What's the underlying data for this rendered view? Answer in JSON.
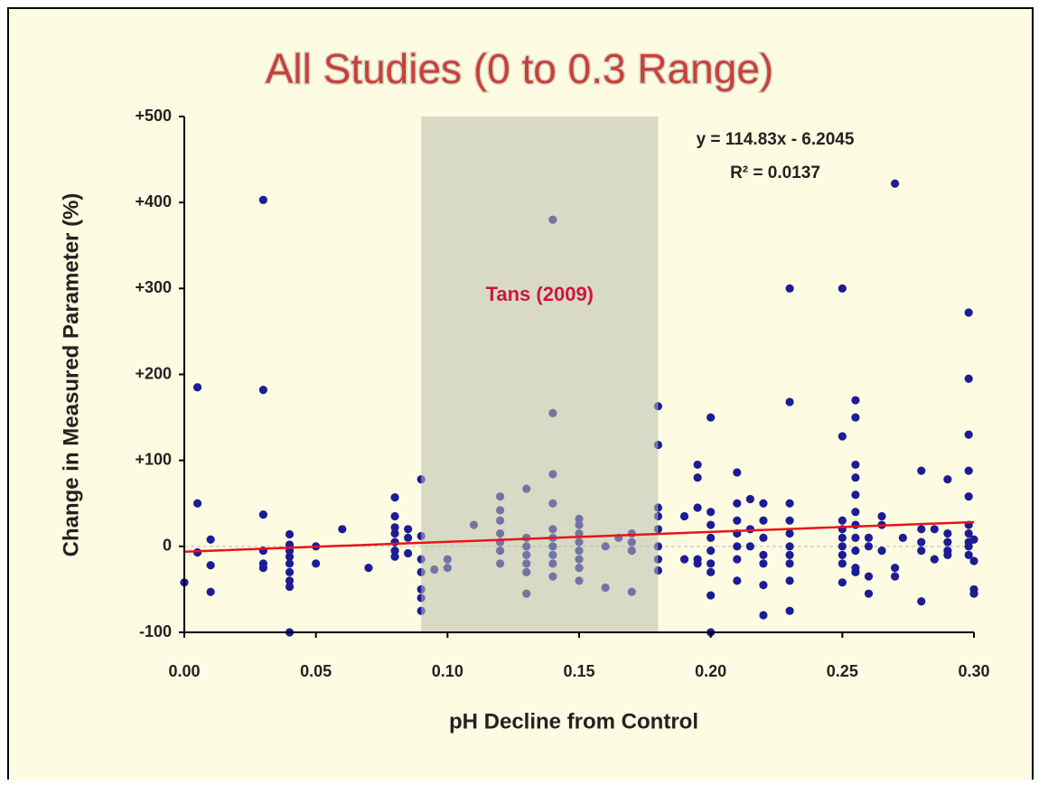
{
  "chart_data": {
    "type": "scatter",
    "title": "All Studies (0 to 0.3 Range)",
    "x_label": "pH Decline from Control",
    "y_label": "Change in Measured Parameter (%)",
    "color": "#1c1c96",
    "x": [
      0.0,
      0.005,
      0.005,
      0.005,
      0.01,
      0.01,
      0.01,
      0.03,
      0.03,
      0.03,
      0.03,
      0.03,
      0.03,
      0.04,
      0.04,
      0.04,
      0.04,
      0.04,
      0.04,
      0.04,
      0.04,
      0.04,
      0.05,
      0.05,
      0.06,
      0.07,
      0.08,
      0.08,
      0.08,
      0.08,
      0.08,
      0.08,
      0.08,
      0.085,
      0.085,
      0.085,
      0.09,
      0.09,
      0.09,
      0.09,
      0.09,
      0.09,
      0.09,
      0.095,
      0.1,
      0.1,
      0.11,
      0.12,
      0.12,
      0.12,
      0.12,
      0.12,
      0.12,
      0.12,
      0.13,
      0.13,
      0.13,
      0.13,
      0.13,
      0.13,
      0.13,
      0.14,
      0.14,
      0.14,
      0.14,
      0.14,
      0.14,
      0.14,
      0.14,
      0.14,
      0.14,
      0.15,
      0.15,
      0.15,
      0.15,
      0.15,
      0.15,
      0.15,
      0.15,
      0.16,
      0.16,
      0.165,
      0.17,
      0.17,
      0.17,
      0.17,
      0.18,
      0.18,
      0.18,
      0.18,
      0.18,
      0.18,
      0.18,
      0.18,
      0.19,
      0.19,
      0.195,
      0.195,
      0.195,
      0.195,
      0.195,
      0.2,
      0.2,
      0.2,
      0.2,
      0.2,
      0.2,
      0.2,
      0.2,
      0.2,
      0.21,
      0.21,
      0.21,
      0.21,
      0.21,
      0.21,
      0.21,
      0.215,
      0.215,
      0.215,
      0.22,
      0.22,
      0.22,
      0.22,
      0.22,
      0.22,
      0.22,
      0.23,
      0.23,
      0.23,
      0.23,
      0.23,
      0.23,
      0.23,
      0.23,
      0.23,
      0.23,
      0.25,
      0.25,
      0.25,
      0.25,
      0.25,
      0.25,
      0.25,
      0.25,
      0.25,
      0.255,
      0.255,
      0.255,
      0.255,
      0.255,
      0.255,
      0.255,
      0.255,
      0.255,
      0.255,
      0.255,
      0.26,
      0.26,
      0.26,
      0.26,
      0.265,
      0.265,
      0.265,
      0.27,
      0.27,
      0.27,
      0.273,
      0.28,
      0.28,
      0.28,
      0.28,
      0.28,
      0.285,
      0.285,
      0.29,
      0.29,
      0.29,
      0.29,
      0.29,
      0.298,
      0.298,
      0.298,
      0.298,
      0.298,
      0.298,
      0.298,
      0.298,
      0.298,
      0.298,
      0.3,
      0.3,
      0.3,
      0.3
    ],
    "values": [
      -42,
      185,
      50,
      -7,
      8,
      -22,
      -53,
      403,
      182,
      37,
      -5,
      -20,
      -25,
      14,
      2,
      -5,
      -12,
      -20,
      -30,
      -40,
      -47,
      -100,
      0,
      -20,
      20,
      -25,
      57,
      35,
      22,
      15,
      5,
      -5,
      -12,
      20,
      10,
      -8,
      78,
      12,
      -15,
      -30,
      -50,
      -60,
      -75,
      -27,
      -15,
      -25,
      25,
      58,
      42,
      30,
      15,
      5,
      -5,
      -20,
      67,
      10,
      0,
      -10,
      -20,
      -30,
      -55,
      380,
      155,
      84,
      50,
      20,
      10,
      0,
      -10,
      -20,
      -35,
      32,
      25,
      15,
      5,
      -5,
      -15,
      -25,
      -40,
      0,
      -48,
      10,
      15,
      5,
      -5,
      -53,
      163,
      118,
      45,
      35,
      20,
      0,
      -15,
      -28,
      35,
      -15,
      95,
      80,
      45,
      -15,
      -20,
      150,
      40,
      25,
      10,
      -5,
      -20,
      -30,
      -57,
      -100,
      86,
      50,
      30,
      15,
      0,
      -15,
      -40,
      55,
      20,
      0,
      50,
      30,
      10,
      -10,
      -20,
      -45,
      -80,
      300,
      168,
      50,
      30,
      15,
      0,
      -10,
      -20,
      -40,
      -75,
      300,
      128,
      30,
      20,
      10,
      0,
      -10,
      -20,
      -42,
      170,
      150,
      95,
      80,
      60,
      40,
      25,
      10,
      -5,
      -25,
      -30,
      10,
      0,
      -35,
      -55,
      35,
      25,
      -5,
      422,
      -25,
      -35,
      10,
      88,
      20,
      5,
      -5,
      -64,
      20,
      -15,
      78,
      15,
      5,
      -5,
      -10,
      272,
      195,
      130,
      88,
      58,
      25,
      15,
      5,
      0,
      -10,
      8,
      -17,
      -50,
      -55
    ],
    "xlim": [
      0,
      0.3
    ],
    "xticks": [
      {
        "value": 0,
        "label": "0.00"
      },
      0.05,
      {
        "value": 0.1,
        "label": "0.10"
      },
      0.15,
      {
        "value": 0.2,
        "label": "0.20"
      },
      0.25,
      {
        "value": 0.3,
        "label": "0.30"
      }
    ],
    "ylim": [
      -100,
      500
    ],
    "yticks": [
      -100,
      {
        "value": 0,
        "label": "0"
      },
      {
        "value": 100,
        "label": "+100"
      },
      {
        "value": 200,
        "label": "+200"
      },
      {
        "value": 300,
        "label": "+300"
      },
      {
        "value": 400,
        "label": "+400"
      },
      {
        "value": 500,
        "label": "+500"
      }
    ],
    "trendline": {
      "slope": 114.83,
      "intercept": -6.2045,
      "color": "#e8141a",
      "equation": "y = 114.83x - 6.2045",
      "r2_label": "R² = 0.0137"
    },
    "shaded_region": {
      "x": [
        0.09,
        0.18
      ],
      "label": "Tans (2009)",
      "color": "#b9bfae"
    }
  }
}
